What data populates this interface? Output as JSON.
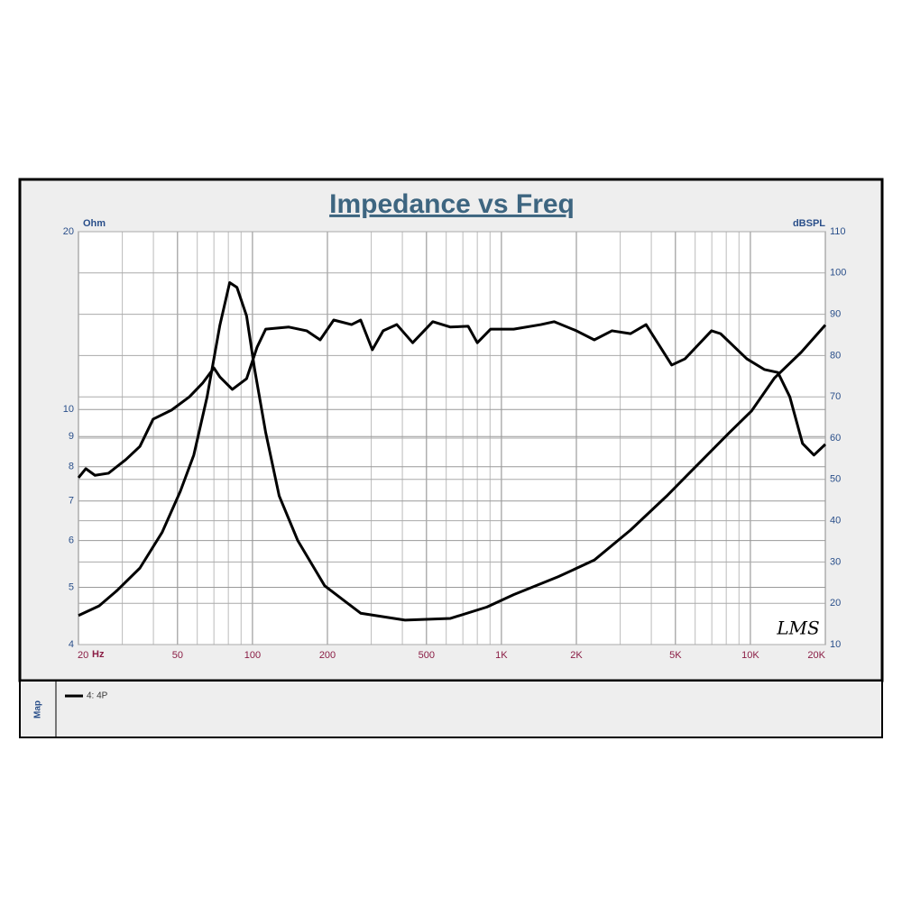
{
  "chart_data": {
    "type": "line",
    "title": "Impedance vs Freq",
    "y_label": "Ohm",
    "y2_label": "dBSPL",
    "x_unit": "Hz",
    "watermark": "LMS",
    "legend_title": "Map",
    "x_scale": "log",
    "y_scale": "log",
    "grid": true,
    "xlim": [
      20,
      20000
    ],
    "ylim": [
      4,
      20
    ],
    "y2lim": [
      10,
      110
    ],
    "xticks": [
      20,
      50,
      100,
      200,
      500,
      {
        "value": 1000,
        "label": "1K"
      },
      {
        "value": 2000,
        "label": "2K"
      },
      {
        "value": 5000,
        "label": "5K"
      },
      {
        "value": 10000,
        "label": "10K"
      },
      {
        "value": 20000,
        "label": "20K"
      }
    ],
    "x_minor_grid": [
      30,
      40,
      60,
      70,
      80,
      90,
      300,
      400,
      600,
      700,
      800,
      900,
      3000,
      4000,
      6000,
      7000,
      8000,
      9000
    ],
    "yticks": [
      4,
      5,
      6,
      7,
      8,
      9,
      10,
      20
    ],
    "y2ticks": [
      10,
      20,
      30,
      40,
      50,
      60,
      70,
      80,
      90,
      100,
      110
    ],
    "series": [
      {
        "name": "4: 4P",
        "color": "#000000",
        "x": [
          20,
          24.2,
          28.6,
          35.3,
          43.4,
          51.3,
          58.1,
          65.7,
          74,
          81,
          86.6,
          94.7,
          102,
          113,
          128,
          152,
          195,
          272,
          410,
          624,
          874,
          1120,
          1690,
          2360,
          3300,
          4600,
          6420,
          8240,
          10100,
          12480,
          16000,
          20000
        ],
        "values": [
          4.48,
          4.65,
          4.94,
          5.39,
          6.2,
          7.27,
          8.37,
          10.5,
          13.9,
          16.4,
          16.1,
          14.4,
          11.7,
          9.14,
          7.14,
          6.0,
          5.03,
          4.52,
          4.4,
          4.43,
          4.63,
          4.86,
          5.21,
          5.56,
          6.25,
          7.13,
          8.22,
          9.14,
          9.94,
          11.3,
          12.5,
          13.9
        ]
      },
      {
        "color": "#000000",
        "axis": "y2",
        "x": [
          20,
          21.4,
          23.3,
          26.4,
          31,
          35.3,
          39.9,
          47.3,
          55.8,
          63,
          70,
          74,
          83,
          94.7,
          104.3,
          113,
          140,
          165,
          187,
          212,
          250,
          272,
          303,
          335,
          380,
          440,
          530,
          624,
          735,
          800,
          905,
          1120,
          1440,
          1630,
          2000,
          2360,
          2780,
          3300,
          3810,
          4830,
          5460,
          6980,
          7590,
          9680,
          11400,
          12900,
          14400,
          16200,
          18000,
          20000
        ],
        "values": [
          50.4,
          52.6,
          51,
          51.5,
          54.8,
          58,
          64.6,
          66.8,
          70,
          73.3,
          77,
          74.8,
          71.8,
          74.4,
          82,
          86.4,
          86.9,
          86,
          83.8,
          88.6,
          87.5,
          88.6,
          81.4,
          86,
          87.5,
          83.1,
          88.2,
          86.9,
          87.1,
          83.1,
          86.4,
          86.4,
          87.5,
          88.2,
          86,
          83.8,
          86,
          85.3,
          87.5,
          77.7,
          79.2,
          86,
          85.3,
          79.2,
          76.6,
          75.9,
          70,
          58.7,
          55.9,
          58.5
        ]
      }
    ]
  }
}
